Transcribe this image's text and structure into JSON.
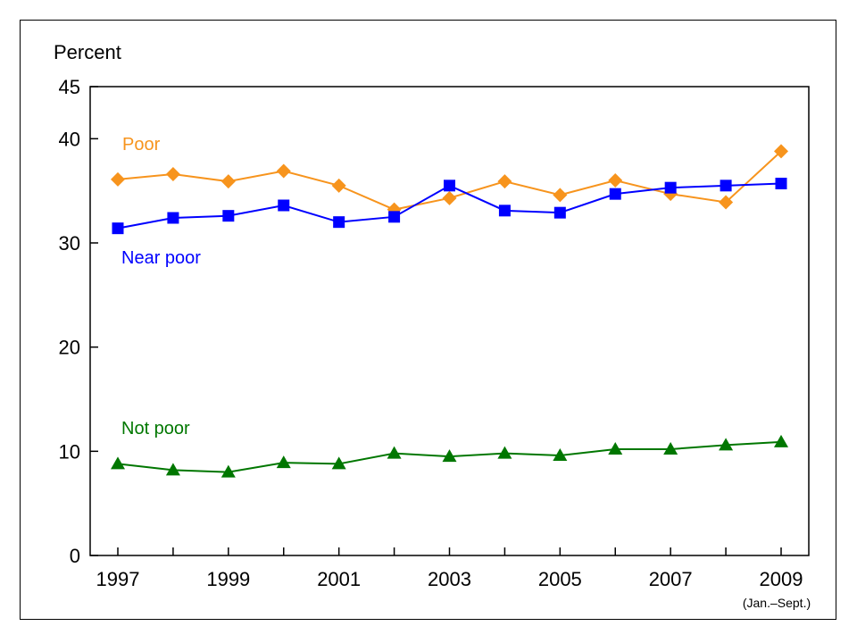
{
  "chart_data": {
    "type": "line",
    "ylabel": "Percent",
    "ylim": [
      0,
      45
    ],
    "yticks": [
      0,
      10,
      20,
      30,
      40,
      45
    ],
    "x": [
      1997,
      1998,
      1999,
      2000,
      2001,
      2002,
      2003,
      2004,
      2005,
      2006,
      2007,
      2008,
      2009
    ],
    "xtick_labels": [
      "1997",
      "1999",
      "2001",
      "2003",
      "2005",
      "2007",
      "2009"
    ],
    "x_note": "(Jan.–Sept.)",
    "grid": false,
    "legend": "inline labels",
    "series": [
      {
        "name": "Poor",
        "color": "#f7941d",
        "marker": "diamond",
        "values": [
          36.1,
          36.6,
          35.9,
          36.9,
          35.5,
          33.2,
          34.3,
          35.9,
          34.6,
          36.0,
          34.7,
          33.9,
          38.8
        ]
      },
      {
        "name": "Near poor",
        "color": "#0000ff",
        "marker": "square",
        "values": [
          31.4,
          32.4,
          32.6,
          33.6,
          32.0,
          32.5,
          35.5,
          33.1,
          32.9,
          34.7,
          35.3,
          35.5,
          35.7
        ]
      },
      {
        "name": "Not poor",
        "color": "#007700",
        "marker": "triangle",
        "values": [
          8.8,
          8.2,
          8.0,
          8.9,
          8.8,
          9.8,
          9.5,
          9.8,
          9.6,
          10.2,
          10.2,
          10.6,
          10.9
        ]
      }
    ]
  }
}
